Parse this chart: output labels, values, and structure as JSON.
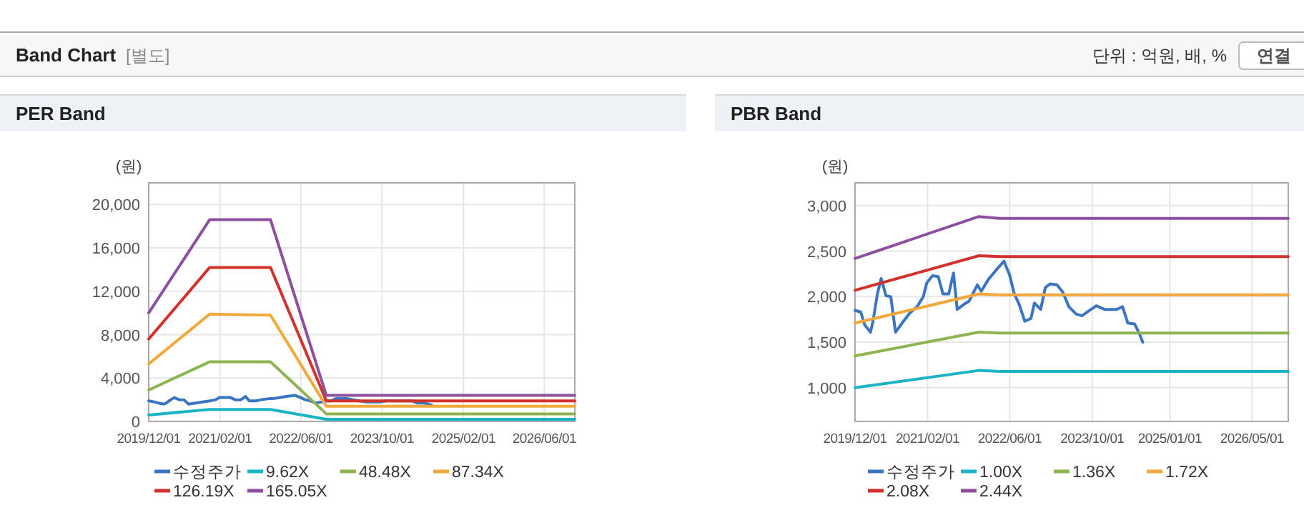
{
  "chart_data": [
    {
      "type": "line",
      "title": "PER Band",
      "ylabel": "(원)",
      "annotations": [
        "Band Chart",
        "[별도]",
        "단위 : 억원, 배, %",
        "연결"
      ],
      "xlim": [
        "2019-12-01",
        "2026-12-01"
      ],
      "xticks": [
        {
          "value": "2019-12-01",
          "label": "2019/12/01"
        },
        {
          "value": "2021-02-01",
          "label": "2021/02/01"
        },
        {
          "value": "2022-06-01",
          "label": "2022/06/01"
        },
        {
          "value": "2023-10-01",
          "label": "2023/10/01"
        },
        {
          "value": "2025-02-01",
          "label": "2025/02/01"
        },
        {
          "value": "2026-06-01",
          "label": "2026/06/01"
        }
      ],
      "ylim": [
        0,
        22000
      ],
      "yticks": [
        0,
        {
          "value": 4000,
          "label": "4,000"
        },
        {
          "value": 8000,
          "label": "8,000"
        },
        {
          "value": 12000,
          "label": "12,000"
        },
        {
          "value": 16000,
          "label": "16,000"
        },
        {
          "value": 20000,
          "label": "20,000"
        }
      ],
      "grid": true,
      "legend": "bottom",
      "series": [
        {
          "name": "수정주가",
          "color": "#3a75c4",
          "x": [
            "2019-12-01",
            "2020-01-04",
            "2020-01-27",
            "2020-03-01",
            "2020-03-16",
            "2020-04-11",
            "2020-05-03",
            "2020-06-01",
            "2020-06-29",
            "2020-07-27",
            "2020-09-08",
            "2020-10-19",
            "2020-12-01",
            "2021-01-07",
            "2021-01-27",
            "2021-03-02",
            "2021-04-05",
            "2021-05-03",
            "2021-06-06",
            "2021-07-04",
            "2021-07-26",
            "2021-09-07",
            "2021-10-04",
            "2021-11-22",
            "2021-12-15",
            "2022-01-26",
            "2022-03-07",
            "2022-04-28",
            "2022-05-31",
            "2022-06-28",
            "2022-07-26",
            "2022-08-29",
            "2022-10-04",
            "2022-10-25",
            "2022-12-01",
            "2022-12-28",
            "2023-01-25",
            "2023-03-07",
            "2023-04-10",
            "2023-05-16",
            "2023-06-28",
            "2023-08-01",
            "2023-09-16",
            "2023-10-25",
            "2023-12-13",
            "2024-02-22",
            "2024-03-28",
            "2024-04-28",
            "2024-06-07",
            "2024-07-04",
            "2024-07-25"
          ],
          "values": [
            1900,
            1800,
            1700,
            1600,
            1700,
            2000,
            2200,
            2000,
            2000,
            1600,
            1700,
            1800,
            1900,
            2000,
            2200,
            2200,
            2200,
            2000,
            2000,
            2300,
            1900,
            1900,
            2000,
            2100,
            2100,
            2200,
            2300,
            2400,
            2200,
            2000,
            1900,
            1700,
            1800,
            1900,
            1900,
            2100,
            2100,
            2100,
            2000,
            1900,
            1800,
            1800,
            1800,
            1900,
            1900,
            1900,
            1900,
            1700,
            1700,
            1600,
            1500
          ]
        },
        {
          "name": "9.62X",
          "color": "#1bb3c6",
          "x": [
            "2019-12-01",
            "2020-12-01",
            "2021-12-01",
            "2022-11-01",
            "2026-12-01"
          ],
          "values": [
            600,
            1100,
            1100,
            200,
            200
          ]
        },
        {
          "name": "48.48X",
          "color": "#8db451",
          "x": [
            "2019-12-01",
            "2020-12-01",
            "2021-12-01",
            "2022-11-01",
            "2026-12-01"
          ],
          "values": [
            2900,
            5500,
            5500,
            700,
            700
          ]
        },
        {
          "name": "87.34X",
          "color": "#f2a93b",
          "x": [
            "2019-12-01",
            "2020-12-01",
            "2021-12-01",
            "2022-11-01",
            "2026-12-01"
          ],
          "values": [
            5300,
            9900,
            9800,
            1400,
            1400
          ]
        },
        {
          "name": "126.19X",
          "color": "#d2312c",
          "x": [
            "2019-12-01",
            "2020-12-01",
            "2021-12-01",
            "2022-11-01",
            "2026-12-01"
          ],
          "values": [
            7600,
            14200,
            14200,
            1900,
            1900
          ]
        },
        {
          "name": "165.05X",
          "color": "#8e4f9e",
          "x": [
            "2019-12-01",
            "2020-12-01",
            "2021-12-01",
            "2022-11-01",
            "2026-12-01"
          ],
          "values": [
            10000,
            18600,
            18600,
            2400,
            2400
          ]
        }
      ]
    },
    {
      "type": "line",
      "title": "PBR Band",
      "ylabel": "(원)",
      "xlim": [
        "2019-12-01",
        "2026-12-01"
      ],
      "xticks": [
        {
          "value": "2019-12-01",
          "label": "2019/12/01"
        },
        {
          "value": "2021-02-01",
          "label": "2021/02/01"
        },
        {
          "value": "2022-06-01",
          "label": "2022/06/01"
        },
        {
          "value": "2023-10-01",
          "label": "2023/10/01"
        },
        {
          "value": "2025-01-01",
          "label": "2025/01/01"
        },
        {
          "value": "2026-05-01",
          "label": "2026/05/01"
        }
      ],
      "ylim": [
        630,
        3250
      ],
      "yticks": [
        {
          "value": 1000,
          "label": "1,000"
        },
        {
          "value": 1500,
          "label": "1,500"
        },
        {
          "value": 2000,
          "label": "2,000"
        },
        {
          "value": 2500,
          "label": "2,500"
        },
        {
          "value": 3000,
          "label": "3,000"
        }
      ],
      "grid": true,
      "legend": "bottom",
      "series": [
        {
          "name": "수정주가",
          "color": "#3a75c4",
          "x": [
            "2019-12-01",
            "2020-01-04",
            "2020-01-27",
            "2020-03-01",
            "2020-03-16",
            "2020-04-11",
            "2020-05-03",
            "2020-06-01",
            "2020-06-29",
            "2020-07-27",
            "2020-09-08",
            "2020-10-19",
            "2020-12-01",
            "2021-01-07",
            "2021-01-27",
            "2021-03-02",
            "2021-04-05",
            "2021-05-03",
            "2021-06-06",
            "2021-07-04",
            "2021-07-26",
            "2021-09-07",
            "2021-10-04",
            "2021-11-22",
            "2021-12-15",
            "2022-01-26",
            "2022-03-07",
            "2022-04-28",
            "2022-05-31",
            "2022-06-28",
            "2022-07-26",
            "2022-08-29",
            "2022-10-04",
            "2022-10-25",
            "2022-12-01",
            "2022-12-28",
            "2023-01-25",
            "2023-03-07",
            "2023-04-10",
            "2023-05-16",
            "2023-06-28",
            "2023-08-01",
            "2023-09-16",
            "2023-10-25",
            "2023-12-13",
            "2024-02-22",
            "2024-03-28",
            "2024-04-28",
            "2024-06-07",
            "2024-07-04",
            "2024-07-25"
          ],
          "values": [
            1850,
            1830,
            1690,
            1610,
            1730,
            2030,
            2200,
            2010,
            2000,
            1610,
            1720,
            1820,
            1890,
            2000,
            2150,
            2230,
            2220,
            2030,
            2030,
            2260,
            1860,
            1920,
            1950,
            2130,
            2060,
            2190,
            2280,
            2390,
            2240,
            2030,
            1920,
            1730,
            1760,
            1930,
            1860,
            2100,
            2140,
            2130,
            2050,
            1890,
            1810,
            1790,
            1850,
            1900,
            1860,
            1860,
            1890,
            1710,
            1700,
            1600,
            1500
          ]
        },
        {
          "name": "1.00X",
          "color": "#1bb3c6",
          "x": [
            "2019-12-01",
            "2021-12-01",
            "2022-04-01",
            "2026-12-01"
          ],
          "values": [
            1000,
            1190,
            1180,
            1180
          ]
        },
        {
          "name": "1.36X",
          "color": "#8db451",
          "x": [
            "2019-12-01",
            "2021-12-01",
            "2022-04-01",
            "2026-12-01"
          ],
          "values": [
            1350,
            1610,
            1600,
            1600
          ]
        },
        {
          "name": "1.72X",
          "color": "#f2a93b",
          "x": [
            "2019-12-01",
            "2021-12-01",
            "2022-04-01",
            "2026-12-01"
          ],
          "values": [
            1710,
            2030,
            2020,
            2020
          ]
        },
        {
          "name": "2.08X",
          "color": "#d2312c",
          "x": [
            "2019-12-01",
            "2021-12-01",
            "2022-04-01",
            "2026-12-01"
          ],
          "values": [
            2070,
            2450,
            2440,
            2440
          ]
        },
        {
          "name": "2.44X",
          "color": "#8e4f9e",
          "x": [
            "2019-12-01",
            "2021-12-01",
            "2022-04-01",
            "2026-12-01"
          ],
          "values": [
            2420,
            2880,
            2860,
            2860
          ]
        }
      ]
    }
  ]
}
